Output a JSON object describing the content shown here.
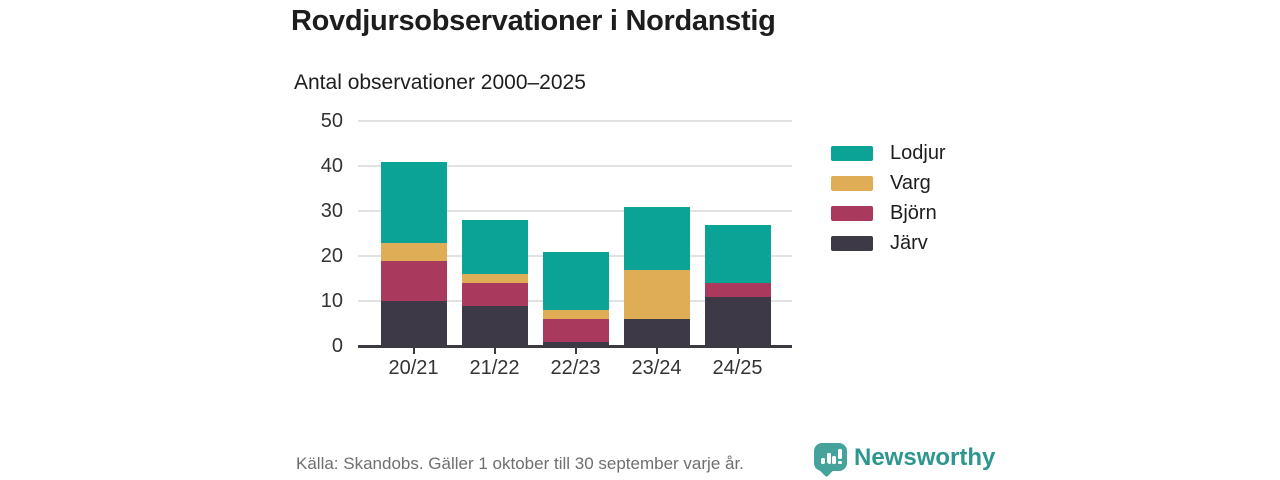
{
  "title": "Rovdjursobservationer i Nordanstig",
  "subtitle": "Antal observationer 2000–2025",
  "footer": {
    "source": "Källa: Skandobs. Gäller 1 oktober till 30 september varje år.",
    "brand": "Newsworthy",
    "brand_color": "#2d968e",
    "logo_icon": "bar-chart-speech-bubble-icon"
  },
  "chart_data": {
    "type": "bar",
    "stacked": true,
    "title": "Rovdjursobservationer i Nordanstig",
    "subtitle": "Antal observationer 2000–2025",
    "categories": [
      "20/21",
      "21/22",
      "22/23",
      "23/24",
      "24/25"
    ],
    "series": [
      {
        "name": "Lodjur",
        "color": "#0aa396",
        "values": [
          18,
          12,
          13,
          14,
          13
        ]
      },
      {
        "name": "Varg",
        "color": "#dfad55",
        "values": [
          4,
          2,
          2,
          11,
          0
        ]
      },
      {
        "name": "Björn",
        "color": "#a93a5e",
        "values": [
          9,
          5,
          5,
          0,
          3
        ]
      },
      {
        "name": "Järv",
        "color": "#3e3947",
        "values": [
          10,
          9,
          1,
          6,
          11
        ]
      }
    ],
    "stack_order_bottom_to_top": [
      "Järv",
      "Björn",
      "Varg",
      "Lodjur"
    ],
    "totals": [
      41,
      28,
      21,
      31,
      27
    ],
    "xlabel": "",
    "ylabel": "",
    "ylim": [
      0,
      50
    ],
    "yticks": [
      0,
      10,
      20,
      30,
      40,
      50
    ],
    "grid": true,
    "gridline_color": "#e2e2e2",
    "axis_color": "#3a3a42",
    "tick_label_color": "#333333",
    "legend_position": "right"
  }
}
